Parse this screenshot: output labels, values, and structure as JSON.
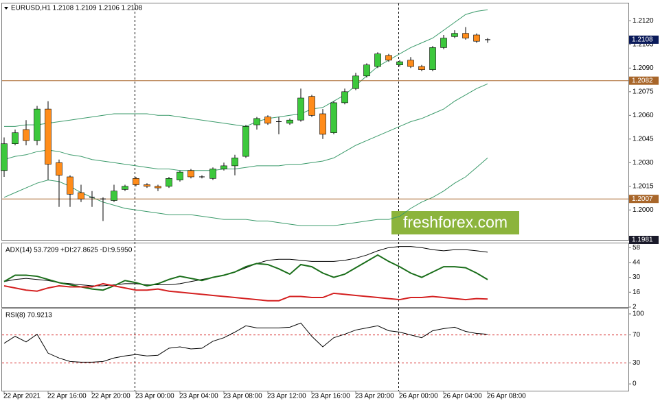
{
  "chart_data": [
    {
      "type": "candlestick",
      "title": "EURUSD,H1  1.2108 1.2109 1.2106 1.2108",
      "watermark": "freshforex.com",
      "categories": [
        "22 Apr 2021",
        null,
        null,
        null,
        "22 Apr 16:00",
        null,
        null,
        null,
        "22 Apr 20:00",
        null,
        null,
        null,
        "23 Apr 00:00",
        null,
        null,
        null,
        "23 Apr 04:00",
        null,
        null,
        null,
        "23 Apr 08:00",
        null,
        null,
        null,
        "23 Apr 12:00",
        null,
        null,
        null,
        "23 Apr 16:00",
        null,
        null,
        null,
        "23 Apr 20:00",
        null,
        null,
        null,
        "26 Apr 00:00",
        null,
        null,
        null,
        "26 Apr 04:00",
        null,
        null,
        null,
        "26 Apr 08:00"
      ],
      "open": [
        1.2025,
        1.2042,
        1.2051,
        1.2044,
        1.2064,
        1.203,
        1.2021,
        1.2011,
        1.2008,
        1.2007,
        1.2006,
        1.2013,
        1.202,
        1.2016,
        1.2015,
        1.2015,
        1.2019,
        1.2025,
        1.2021,
        1.202,
        1.2026,
        1.2028,
        1.2034,
        1.2054,
        1.2059,
        1.2056,
        1.2055,
        1.2057,
        1.2072,
        1.2061,
        1.2049,
        1.2068,
        1.2077,
        1.2085,
        1.2091,
        1.2098,
        1.2092,
        1.2095,
        1.2091,
        1.2089,
        1.2103,
        1.211,
        1.2112,
        1.2111,
        1.2108
      ],
      "high": [
        1.2046,
        1.2051,
        1.2057,
        1.2066,
        1.2069,
        1.2032,
        1.2022,
        1.2016,
        1.2012,
        1.2008,
        1.2016,
        1.2016,
        1.2021,
        1.2017,
        1.2016,
        1.2021,
        1.2025,
        1.2026,
        1.2022,
        1.2027,
        1.203,
        1.2035,
        1.2054,
        1.2059,
        1.206,
        1.2059,
        1.2058,
        1.2077,
        1.2073,
        1.2064,
        1.2069,
        1.2077,
        1.2087,
        1.2093,
        1.21,
        1.2099,
        1.2095,
        1.2097,
        1.2092,
        1.2104,
        1.2111,
        1.2114,
        1.2116,
        1.2112,
        1.2109
      ],
      "low": [
        1.2021,
        1.2041,
        1.2041,
        1.2041,
        1.2019,
        1.2002,
        1.2002,
        1.2005,
        1.2002,
        1.1993,
        1.2005,
        1.2012,
        1.2015,
        1.2014,
        1.2012,
        1.2014,
        1.2018,
        1.202,
        1.202,
        1.2019,
        1.2025,
        1.2022,
        1.2033,
        1.2051,
        1.2054,
        1.2048,
        1.2054,
        1.2056,
        1.2059,
        1.2045,
        1.2048,
        1.2067,
        1.2076,
        1.2084,
        1.209,
        1.2094,
        1.2091,
        1.209,
        1.2088,
        1.2088,
        1.2102,
        1.2109,
        1.2108,
        1.2106,
        1.2106
      ],
      "close": [
        1.2042,
        1.2049,
        1.2044,
        1.2064,
        1.2029,
        1.2022,
        1.201,
        1.2007,
        1.2008,
        1.2007,
        1.2012,
        1.2015,
        1.2016,
        1.2015,
        1.2014,
        1.202,
        1.2024,
        1.2021,
        1.2021,
        1.2026,
        1.2028,
        1.2033,
        1.2053,
        1.2058,
        1.2055,
        1.2056,
        1.2057,
        1.2071,
        1.206,
        1.2048,
        1.2068,
        1.2075,
        1.2085,
        1.2092,
        1.2099,
        1.2095,
        1.2094,
        1.2091,
        1.2089,
        1.2103,
        1.2109,
        1.2112,
        1.2109,
        1.2107,
        1.2108
      ],
      "up_color": "#3cc83c",
      "down_color": "#ff8c1a",
      "doji_color": "#000000",
      "lines": [
        {
          "color": "#3a9a6a",
          "values": [
            1.2053,
            1.2053,
            1.2054,
            1.2054,
            1.2055,
            1.2056,
            1.2057,
            1.2058,
            1.2059,
            1.206,
            1.2061,
            1.2061,
            1.2061,
            1.2061,
            1.206,
            1.206,
            1.2059,
            1.2058,
            1.2057,
            1.2056,
            1.2055,
            1.2054,
            1.2053,
            1.2056,
            1.2058,
            1.2059,
            1.206,
            1.2061,
            1.2064,
            1.2065,
            1.2069,
            1.2073,
            1.2079,
            1.2085,
            1.2091,
            1.2095,
            1.2099,
            1.2103,
            1.2106,
            1.2109,
            1.2114,
            1.2119,
            1.2124,
            1.2126,
            1.2127
          ]
        },
        {
          "color": "#3a9a6a",
          "values": [
            1.2032,
            1.2034,
            1.2035,
            1.2037,
            1.2038,
            1.2037,
            1.2035,
            1.2034,
            1.2032,
            1.2031,
            1.203,
            1.2029,
            1.2028,
            1.2027,
            1.2026,
            1.2026,
            1.2025,
            1.2025,
            1.2025,
            1.2025,
            1.2026,
            1.2026,
            1.2027,
            1.2028,
            1.2028,
            1.2028,
            1.2029,
            1.2029,
            1.203,
            1.2031,
            1.2033,
            1.2037,
            1.2041,
            1.2044,
            1.2047,
            1.205,
            1.2053,
            1.2056,
            1.2058,
            1.2061,
            1.2064,
            1.2069,
            1.2073,
            1.2077,
            1.208
          ]
        },
        {
          "color": "#3a9a6a",
          "values": [
            1.2008,
            1.2011,
            1.2014,
            1.2017,
            1.2019,
            1.2018,
            1.2015,
            1.2011,
            1.2008,
            1.2005,
            1.2003,
            1.2001,
            1.2,
            1.1999,
            1.1998,
            1.1997,
            1.1997,
            1.1997,
            1.1996,
            1.1995,
            1.1994,
            1.1994,
            1.1994,
            1.1993,
            1.1993,
            1.1992,
            1.1991,
            1.199,
            1.199,
            1.199,
            1.199,
            1.1991,
            1.1992,
            1.1993,
            1.1994,
            1.1994,
            1.1996,
            1.2001,
            1.2005,
            1.2008,
            1.2012,
            1.2017,
            1.2021,
            1.2027,
            1.2033
          ]
        }
      ],
      "hlines": [
        1.2082,
        1.2007
      ],
      "hline_color": "#a8662a",
      "price_label_color": "#0a1a5a",
      "ylim": [
        1.1981,
        1.2131
      ],
      "yticks": [
        {
          "value": 1.2,
          "label": "1.2000"
        },
        1.2015,
        {
          "value": 1.203,
          "label": "1.2030"
        },
        1.2045,
        {
          "value": 1.206,
          "label": "1.2060"
        },
        1.2075,
        {
          "value": 1.209,
          "label": "1.2090"
        },
        1.2105,
        {
          "value": 1.212,
          "label": "1.2120"
        }
      ]
    },
    {
      "type": "line",
      "title": "ADX(14) 53.7209 +DI:27.8625 -DI:9.5950",
      "series": [
        {
          "color": "#000000",
          "values": [
            26,
            28,
            29,
            28,
            27,
            25,
            24,
            23,
            22,
            22,
            23,
            24,
            24,
            23,
            23,
            23,
            24,
            26,
            28,
            30,
            32,
            35,
            39,
            43,
            46,
            47,
            47,
            46,
            45,
            45,
            45,
            46,
            48,
            51,
            55,
            58,
            59,
            59,
            58,
            56,
            55,
            56,
            56,
            55,
            53.7209
          ]
        },
        {
          "color": "#1a6e1a",
          "values": [
            26,
            32,
            32,
            31,
            28,
            25,
            23,
            21,
            19,
            18,
            22,
            27,
            25,
            22,
            24,
            28,
            31,
            29,
            27,
            30,
            32,
            35,
            40,
            43,
            42,
            38,
            33,
            42,
            40,
            34,
            30,
            33,
            39,
            45,
            51,
            45,
            40,
            34,
            30,
            35,
            40,
            40,
            39,
            34,
            27.8625
          ]
        },
        {
          "color": "#d42020",
          "values": [
            22,
            20,
            18,
            17,
            20,
            22,
            21,
            21,
            21,
            24,
            22,
            20,
            18,
            18,
            19,
            17,
            16,
            15,
            14,
            13,
            12,
            11,
            10,
            9,
            8,
            8,
            12,
            12,
            11,
            11,
            15,
            14,
            13,
            12,
            11,
            10,
            9,
            11,
            11,
            12,
            11,
            10,
            9,
            10,
            9.595
          ]
        }
      ],
      "ylim": [
        2,
        62
      ],
      "yticks": [
        2,
        16,
        30,
        44,
        58
      ]
    },
    {
      "type": "line",
      "title": "RSI(8) 70.9213",
      "series": [
        {
          "color": "#000000",
          "values": [
            58,
            68,
            60,
            71,
            44,
            37,
            32,
            31,
            31,
            32,
            37,
            40,
            42,
            40,
            41,
            51,
            53,
            50,
            51,
            61,
            66,
            74,
            83,
            80,
            80,
            80,
            81,
            87,
            68,
            53,
            66,
            71,
            77,
            80,
            83,
            76,
            74,
            70,
            66,
            76,
            79,
            81,
            75,
            72,
            70.9213
          ]
        }
      ],
      "levels": [
        70,
        30
      ],
      "level_color": "#d42020",
      "ylim": [
        -9.7,
        106.8
      ],
      "yticks": [
        0,
        30,
        70,
        100
      ]
    }
  ]
}
